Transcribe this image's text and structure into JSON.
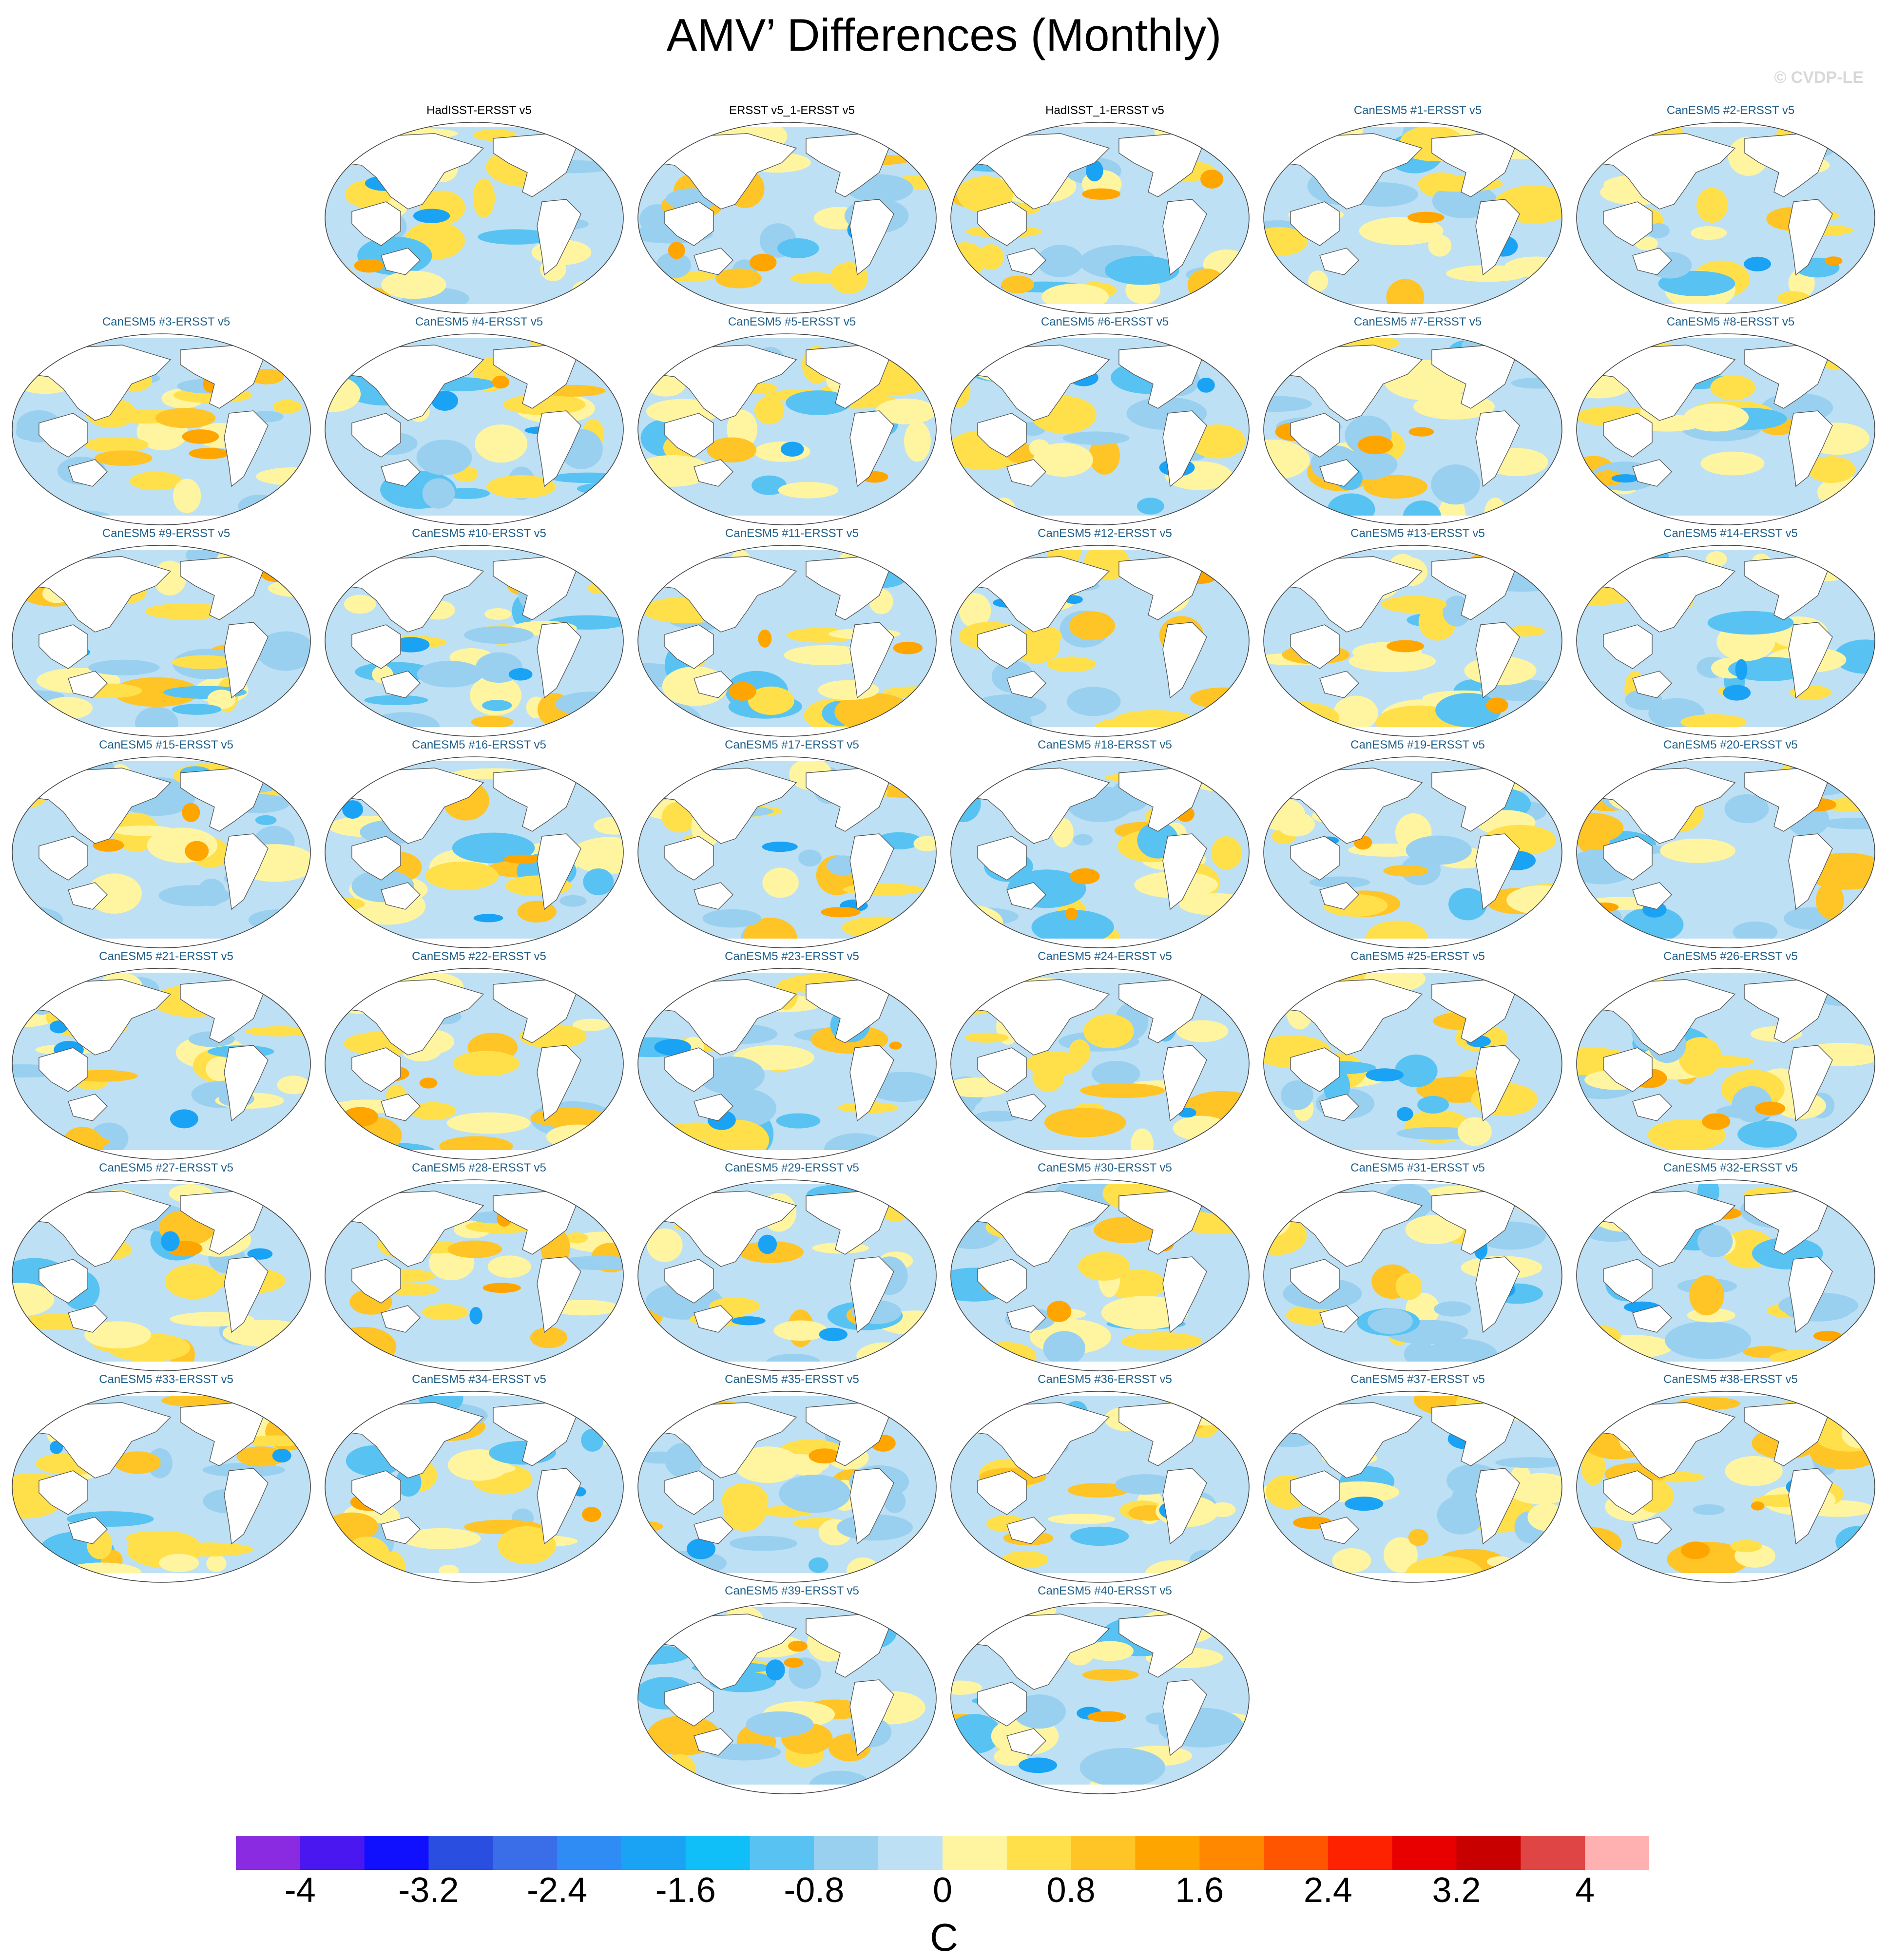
{
  "title": "AMV’ Differences (Monthly)",
  "watermark": "© CVDP-LE",
  "chart_data": {
    "type": "heatmap",
    "description_units": "C",
    "panels": [
      {
        "label": "HadISST-ERSST v5",
        "kind": "observation"
      },
      {
        "label": "ERSST v5_1-ERSST v5",
        "kind": "observation"
      },
      {
        "label": "HadISST_1-ERSST v5",
        "kind": "observation"
      },
      {
        "label": "CanESM5 #1-ERSST v5",
        "kind": "model"
      },
      {
        "label": "CanESM5 #2-ERSST v5",
        "kind": "model"
      },
      {
        "label": "CanESM5 #3-ERSST v5",
        "kind": "model"
      },
      {
        "label": "CanESM5 #4-ERSST v5",
        "kind": "model"
      },
      {
        "label": "CanESM5 #5-ERSST v5",
        "kind": "model"
      },
      {
        "label": "CanESM5 #6-ERSST v5",
        "kind": "model"
      },
      {
        "label": "CanESM5 #7-ERSST v5",
        "kind": "model"
      },
      {
        "label": "CanESM5 #8-ERSST v5",
        "kind": "model"
      },
      {
        "label": "CanESM5 #9-ERSST v5",
        "kind": "model"
      },
      {
        "label": "CanESM5 #10-ERSST v5",
        "kind": "model"
      },
      {
        "label": "CanESM5 #11-ERSST v5",
        "kind": "model"
      },
      {
        "label": "CanESM5 #12-ERSST v5",
        "kind": "model"
      },
      {
        "label": "CanESM5 #13-ERSST v5",
        "kind": "model"
      },
      {
        "label": "CanESM5 #14-ERSST v5",
        "kind": "model"
      },
      {
        "label": "CanESM5 #15-ERSST v5",
        "kind": "model"
      },
      {
        "label": "CanESM5 #16-ERSST v5",
        "kind": "model"
      },
      {
        "label": "CanESM5 #17-ERSST v5",
        "kind": "model"
      },
      {
        "label": "CanESM5 #18-ERSST v5",
        "kind": "model"
      },
      {
        "label": "CanESM5 #19-ERSST v5",
        "kind": "model"
      },
      {
        "label": "CanESM5 #20-ERSST v5",
        "kind": "model"
      },
      {
        "label": "CanESM5 #21-ERSST v5",
        "kind": "model"
      },
      {
        "label": "CanESM5 #22-ERSST v5",
        "kind": "model"
      },
      {
        "label": "CanESM5 #23-ERSST v5",
        "kind": "model"
      },
      {
        "label": "CanESM5 #24-ERSST v5",
        "kind": "model"
      },
      {
        "label": "CanESM5 #25-ERSST v5",
        "kind": "model"
      },
      {
        "label": "CanESM5 #26-ERSST v5",
        "kind": "model"
      },
      {
        "label": "CanESM5 #27-ERSST v5",
        "kind": "model"
      },
      {
        "label": "CanESM5 #28-ERSST v5",
        "kind": "model"
      },
      {
        "label": "CanESM5 #29-ERSST v5",
        "kind": "model"
      },
      {
        "label": "CanESM5 #30-ERSST v5",
        "kind": "model"
      },
      {
        "label": "CanESM5 #31-ERSST v5",
        "kind": "model"
      },
      {
        "label": "CanESM5 #32-ERSST v5",
        "kind": "model"
      },
      {
        "label": "CanESM5 #33-ERSST v5",
        "kind": "model"
      },
      {
        "label": "CanESM5 #34-ERSST v5",
        "kind": "model"
      },
      {
        "label": "CanESM5 #35-ERSST v5",
        "kind": "model"
      },
      {
        "label": "CanESM5 #36-ERSST v5",
        "kind": "model"
      },
      {
        "label": "CanESM5 #37-ERSST v5",
        "kind": "model"
      },
      {
        "label": "CanESM5 #38-ERSST v5",
        "kind": "model"
      },
      {
        "label": "CanESM5 #39-ERSST v5",
        "kind": "model"
      },
      {
        "label": "CanESM5 #40-ERSST v5",
        "kind": "model"
      }
    ],
    "colorbar": {
      "units": "C",
      "range": [
        -4.4,
        4.4
      ],
      "tick_labels": [
        "-4",
        "-3.2",
        "-2.4",
        "-1.6",
        "-0.8",
        "0",
        "0.8",
        "1.6",
        "2.4",
        "3.2",
        "4"
      ],
      "tick_values": [
        -4,
        -3.2,
        -2.4,
        -1.6,
        -0.8,
        0,
        0.8,
        1.6,
        2.4,
        3.2,
        4
      ],
      "colors": [
        "#8a2be2",
        "#4b17f0",
        "#1010ff",
        "#2a4fe0",
        "#3a6ee8",
        "#2f8cf5",
        "#1aa3f5",
        "#10bff8",
        "#58c3f2",
        "#9ad0ef",
        "#bde0f4",
        "#fff5a0",
        "#ffe04a",
        "#ffc425",
        "#ffa500",
        "#ff8800",
        "#ff5500",
        "#ff2200",
        "#e80000",
        "#c80000",
        "#e04545",
        "#ffb0b0"
      ]
    }
  }
}
